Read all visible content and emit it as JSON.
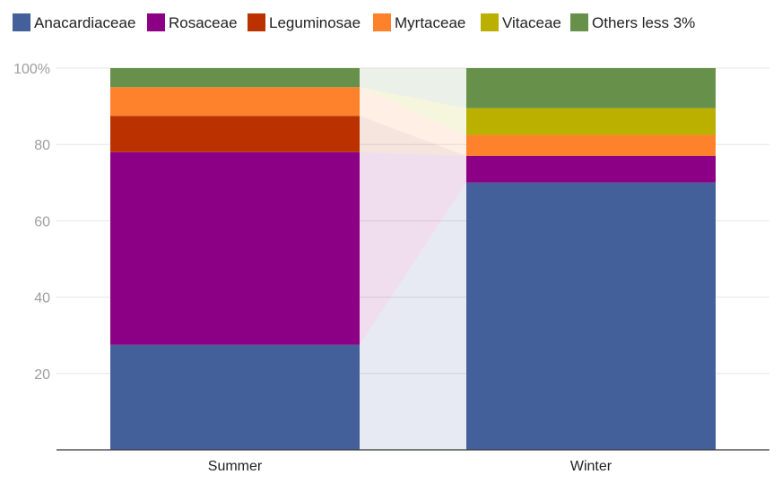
{
  "chart_data": {
    "type": "bar",
    "stacked": true,
    "title": "",
    "xlabel": "",
    "ylabel": "",
    "ylim": [
      0,
      100
    ],
    "y_ticks": [
      "",
      "20",
      "40",
      "60",
      "80",
      "100%"
    ],
    "grid": true,
    "legend_position": "top",
    "categories": [
      "Summer",
      "Winter"
    ],
    "series": [
      {
        "name": "Anacardiaceae",
        "color": "#44609a",
        "values": [
          27.5,
          70
        ]
      },
      {
        "name": "Rosaceae",
        "color": "#8b0085",
        "values": [
          50.5,
          7
        ]
      },
      {
        "name": "Leguminosae",
        "color": "#bb3200",
        "values": [
          9.5,
          0
        ]
      },
      {
        "name": "Myrtaceae",
        "color": "#fd822b",
        "values": [
          7.5,
          5.5
        ]
      },
      {
        "name": "Vitaceae",
        "color": "#bbb000",
        "values": [
          0,
          7
        ]
      },
      {
        "name": "Others less 3%",
        "color": "#67904a",
        "values": [
          5,
          10.5
        ]
      }
    ]
  }
}
